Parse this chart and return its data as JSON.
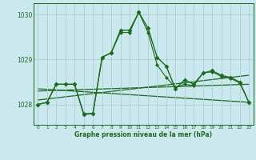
{
  "title": "Graphe pression niveau de la mer (hPa)",
  "bg_color": "#cce8ef",
  "grid_color": "#aacdd6",
  "line_color": "#1a6b1a",
  "xlim": [
    -0.5,
    23.5
  ],
  "ylim": [
    1027.55,
    1030.25
  ],
  "yticks": [
    1028,
    1029,
    1030
  ],
  "xticks": [
    0,
    1,
    2,
    3,
    4,
    5,
    6,
    7,
    8,
    9,
    10,
    11,
    12,
    13,
    14,
    15,
    16,
    17,
    18,
    19,
    20,
    21,
    22,
    23
  ],
  "series": [
    {
      "x": [
        0,
        1,
        2,
        3,
        4,
        5,
        6,
        7,
        8,
        9,
        10,
        11,
        12,
        13,
        14,
        15,
        16,
        17,
        18,
        19,
        20,
        21,
        22,
        23
      ],
      "y": [
        1028.0,
        1028.05,
        1028.45,
        1028.45,
        1028.45,
        1027.78,
        1027.8,
        1029.05,
        1029.15,
        1029.65,
        1029.65,
        1030.05,
        1029.7,
        1029.05,
        1028.85,
        1028.35,
        1028.55,
        1028.45,
        1028.7,
        1028.75,
        1028.65,
        1028.6,
        1028.5,
        1028.05
      ],
      "marker": "D",
      "markersize": 2.5,
      "linewidth": 1.0,
      "zorder": 3
    },
    {
      "x": [
        0,
        1,
        2,
        3,
        4,
        5,
        6,
        7,
        8,
        9,
        10,
        11,
        12,
        13,
        14,
        15,
        16,
        17,
        18,
        19,
        20,
        21,
        22,
        23
      ],
      "y": [
        1028.0,
        1028.05,
        1028.45,
        1028.45,
        1028.45,
        1027.8,
        1027.8,
        1029.05,
        1029.15,
        1029.6,
        1029.6,
        1030.05,
        1029.6,
        1028.88,
        1028.6,
        1028.38,
        1028.45,
        1028.42,
        1028.7,
        1028.73,
        1028.62,
        1028.58,
        1028.48,
        1028.05
      ],
      "marker": "D",
      "markersize": 2.0,
      "linewidth": 0.8,
      "zorder": 2
    },
    {
      "x": [
        0,
        23
      ],
      "y": [
        1028.35,
        1028.05
      ],
      "marker": null,
      "markersize": 0,
      "linewidth": 0.9,
      "zorder": 1
    },
    {
      "x": [
        0,
        23
      ],
      "y": [
        1028.1,
        1028.65
      ],
      "marker": null,
      "markersize": 0,
      "linewidth": 0.9,
      "zorder": 1
    },
    {
      "x": [
        0,
        23
      ],
      "y": [
        1028.3,
        1028.45
      ],
      "marker": null,
      "markersize": 0,
      "linewidth": 0.9,
      "zorder": 1
    }
  ]
}
